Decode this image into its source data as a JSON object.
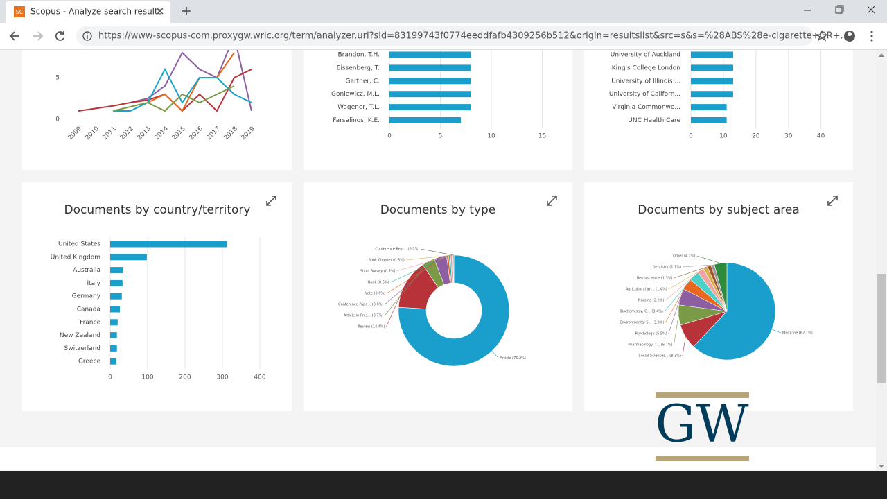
{
  "browser": {
    "favicon": "SC",
    "tab_title": "Scopus - Analyze search results",
    "url": "https://www-scopus-com.proxygw.wrlc.org/term/analyzer.uri?sid=83199743f0774eeddfafb4309256b512&origin=resultslist&src=s&s=%28ABS%28e-cigarette+OR+..."
  },
  "chart_data": [
    {
      "type": "line",
      "categories": [
        "2009",
        "2010",
        "2011",
        "2012",
        "2013",
        "2014",
        "2015",
        "2016",
        "2017",
        "2018",
        "2019"
      ],
      "ylim": [
        0,
        10
      ],
      "yticks": [
        0,
        5
      ],
      "series": [
        {
          "color": "#8e5ea2",
          "values": [
            null,
            null,
            null,
            2,
            2.5,
            4,
            8,
            6,
            5,
            10,
            1
          ]
        },
        {
          "color": "#b8323a",
          "values": [
            1,
            1.3,
            1.6,
            2,
            2.3,
            3,
            1,
            3,
            1,
            5,
            6
          ]
        },
        {
          "color": "#e8671f",
          "values": [
            null,
            null,
            null,
            null,
            2,
            3,
            1,
            5,
            5,
            8,
            null
          ]
        },
        {
          "color": "#1aa3c9",
          "values": [
            null,
            null,
            1,
            1,
            2,
            6,
            2,
            5,
            5,
            3,
            2
          ]
        },
        {
          "color": "#7a9a47",
          "values": [
            null,
            null,
            1,
            1.5,
            2,
            1,
            3,
            2,
            3,
            4,
            null
          ]
        }
      ]
    },
    {
      "type": "bar",
      "orientation": "horizontal",
      "color": "#1a9ecb",
      "grid": true,
      "categories": [
        "Brandon, T.H.",
        "Eissenberg, T.",
        "Gartner, C.",
        "Goniewicz, M.L.",
        "Wagener, T.L.",
        "Farsalinos, K.E."
      ],
      "values": [
        8,
        8,
        8,
        8,
        8,
        7
      ],
      "xlim": [
        0,
        17
      ],
      "xticks": [
        0,
        5,
        10,
        15
      ]
    },
    {
      "type": "bar",
      "orientation": "horizontal",
      "color": "#1a9ecb",
      "grid": true,
      "categories": [
        "University of Auckland",
        "King's College London",
        "University of Illinois ...",
        "University of Californ...",
        "Virginia Commonwe...",
        "UNC Health Care"
      ],
      "values": [
        13,
        13,
        13,
        13,
        11,
        11
      ],
      "xlim": [
        0,
        42
      ],
      "xticks": [
        0,
        10,
        20,
        30,
        40
      ]
    },
    {
      "type": "bar",
      "orientation": "horizontal",
      "color": "#1a9ecb",
      "grid": true,
      "title": "Documents by country/territory",
      "categories": [
        "United States",
        "United Kingdom",
        "Australia",
        "Italy",
        "Germany",
        "Canada",
        "France",
        "New Zealand",
        "Switzerland",
        "Greece"
      ],
      "values": [
        313,
        98,
        35,
        33,
        31,
        26,
        20,
        18,
        18,
        17
      ],
      "xlim": [
        0,
        400
      ],
      "xticks": [
        0,
        100,
        200,
        300,
        400
      ]
    },
    {
      "type": "donut",
      "title": "Documents by type",
      "values": [
        75.2,
        14.4,
        3.7,
        3.6,
        0.6,
        0.5,
        0.5,
        0.3,
        0.2
      ],
      "value_labels": [
        "Article (75.2%)",
        "Review (14.4%)",
        "Article in Pres... (3.7%)",
        "Conference Pape... (3.6%)",
        "Note (0.6%)",
        "Book (0.5%)",
        "Short Survey (0.5%)",
        "Book Chapter (0.3%)",
        "Conference Revi... (0.2%)"
      ],
      "colors": [
        "#1a9ecb",
        "#b8323a",
        "#7a9a47",
        "#8e5ea2",
        "#e8671f",
        "#26a69a",
        "#e89ab0",
        "#d4b04a",
        "#555555"
      ]
    },
    {
      "type": "pie",
      "title": "Documents by subject area",
      "values": [
        62.1,
        8.3,
        6.7,
        5.5,
        3.8,
        3.4,
        2.2,
        1.4,
        1.3,
        1.1,
        4.2
      ],
      "value_labels": [
        "Medicine (62.1%)",
        "Social Sciences... (8.3%)",
        "Pharmacology, T... (6.7%)",
        "Psychology (5.5%)",
        "Environmental S... (3.8%)",
        "Biochemistry, G... (3.4%)",
        "Nursing (2.2%)",
        "Agricultural an... (1.4%)",
        "Neuroscience (1.3%)",
        "Dentistry (1.1%)",
        "Other (4.2%)"
      ],
      "colors": [
        "#1a9ecb",
        "#b8323a",
        "#7a9a47",
        "#8e5ea2",
        "#e8671f",
        "#4dd0c8",
        "#f2a5a5",
        "#d4b04a",
        "#a0522d",
        "#999999",
        "#2e8b3e"
      ]
    }
  ],
  "logo": "GW"
}
